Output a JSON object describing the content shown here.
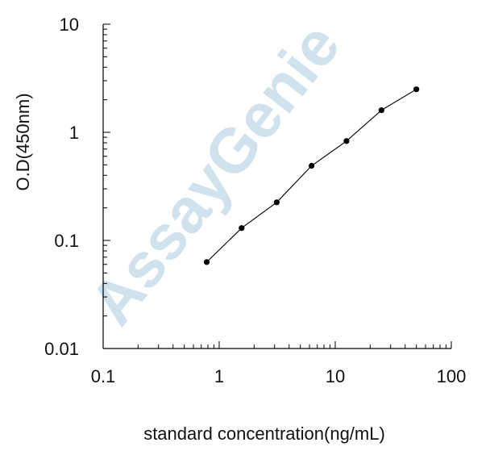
{
  "chart_data": {
    "type": "line",
    "title": "",
    "xlabel": "standard concentration(ng/mL)",
    "ylabel": "O.D(450nm)",
    "x_scale": "log",
    "y_scale": "log",
    "xlim": [
      0.1,
      100
    ],
    "ylim": [
      0.01,
      10
    ],
    "x_tick_labels": [
      "0.1",
      "1",
      "10",
      "100"
    ],
    "y_tick_labels": [
      "10",
      "1",
      "0.1",
      "0.01"
    ],
    "grid": false,
    "legend": "none",
    "series": [
      {
        "x": [
          0.78,
          1.56,
          3.13,
          6.25,
          12.5,
          25,
          50
        ],
        "y": [
          0.063,
          0.13,
          0.225,
          0.49,
          0.83,
          1.6,
          2.5
        ],
        "color": "#000000"
      }
    ],
    "watermark": "AssayGenie"
  }
}
